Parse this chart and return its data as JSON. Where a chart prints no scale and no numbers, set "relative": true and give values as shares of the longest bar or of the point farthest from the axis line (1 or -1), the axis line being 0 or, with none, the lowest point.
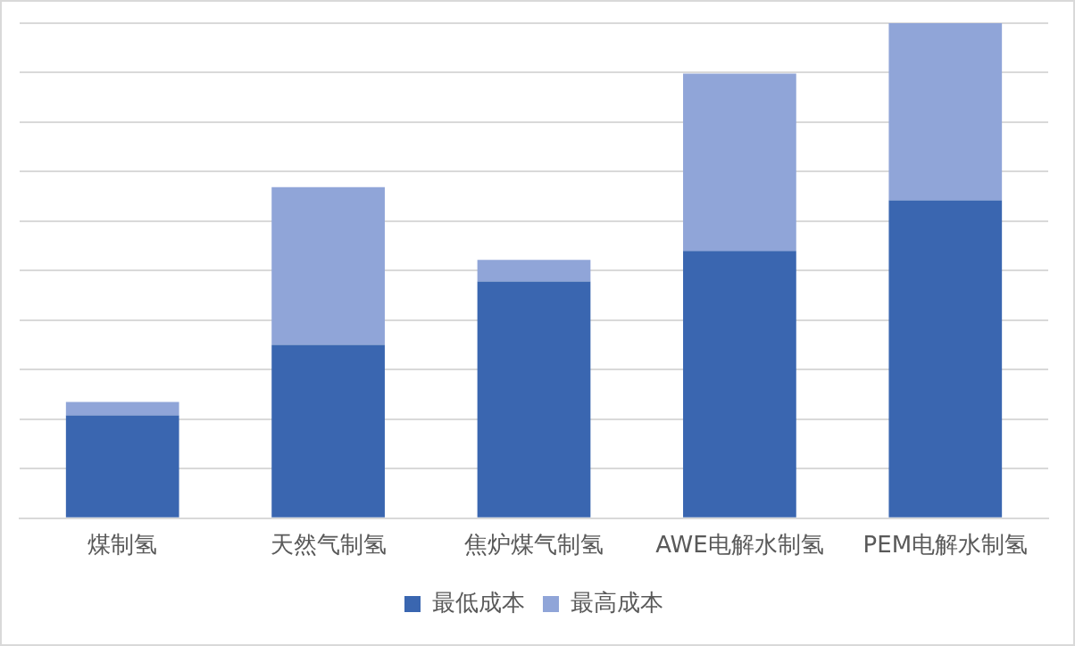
{
  "chart_data": {
    "type": "bar",
    "stacked": true,
    "relative": true,
    "grid": "y",
    "legend": "bottom",
    "categories": [
      "煤制氢",
      "天然气制氢",
      "焦炉煤气制氢",
      "AWE电解水制氢",
      "PEM电解水制氢"
    ],
    "series": [
      {
        "name": "最低成本",
        "color": "#3a66b0",
        "values": [
          0.208,
          0.35,
          0.478,
          0.54,
          0.642
        ]
      },
      {
        "name": "最高成本",
        "color": "#90a5d8",
        "values": [
          0.027,
          0.319,
          0.044,
          0.358,
          0.358
        ]
      }
    ]
  }
}
